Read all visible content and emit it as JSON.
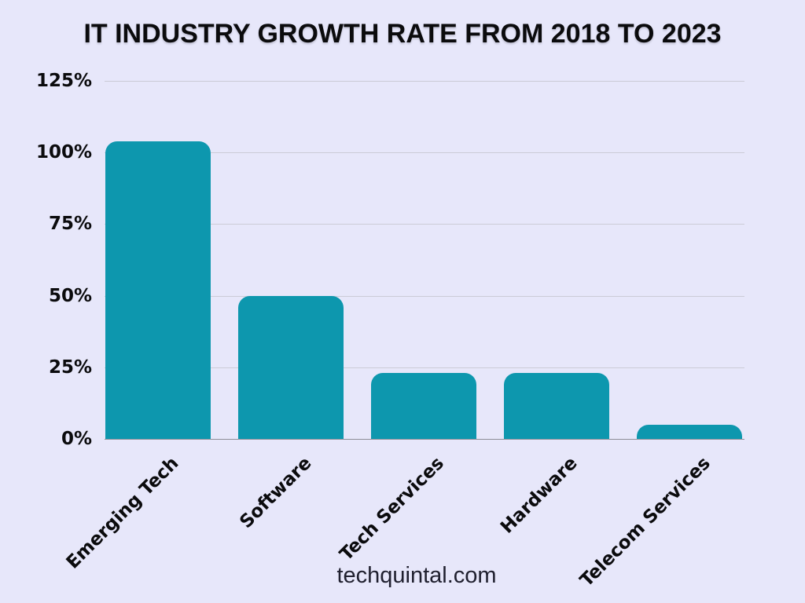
{
  "title": "IT INDUSTRY GROWTH RATE FROM 2018 TO 2023",
  "footer": "techquintal.com",
  "colors": {
    "background": "#E7E7FA",
    "bar": "#0D97AE",
    "gridline": "#CBCBD6",
    "baseline": "#8E8E98",
    "text": "#0B0B0D"
  },
  "chart_data": {
    "type": "bar",
    "title": "IT INDUSTRY GROWTH RATE FROM 2018 TO 2023",
    "categories": [
      "Emerging Tech",
      "Software",
      "Tech Services",
      "Hardware",
      "Telecom Services"
    ],
    "values": [
      104,
      50,
      23,
      23,
      5
    ],
    "value_unit": "%",
    "xlabel": "",
    "ylabel": "",
    "ylim": [
      0,
      125
    ],
    "ytick_values": [
      0,
      25,
      50,
      75,
      100,
      125
    ],
    "ytick_labels": [
      "0%",
      "25%",
      "50%",
      "75%",
      "100%",
      "125%"
    ],
    "grid": true,
    "legend": "none",
    "bar_color": "#0D97AE",
    "x_label_rotation_deg": 45,
    "source_text": "techquintal.com"
  }
}
